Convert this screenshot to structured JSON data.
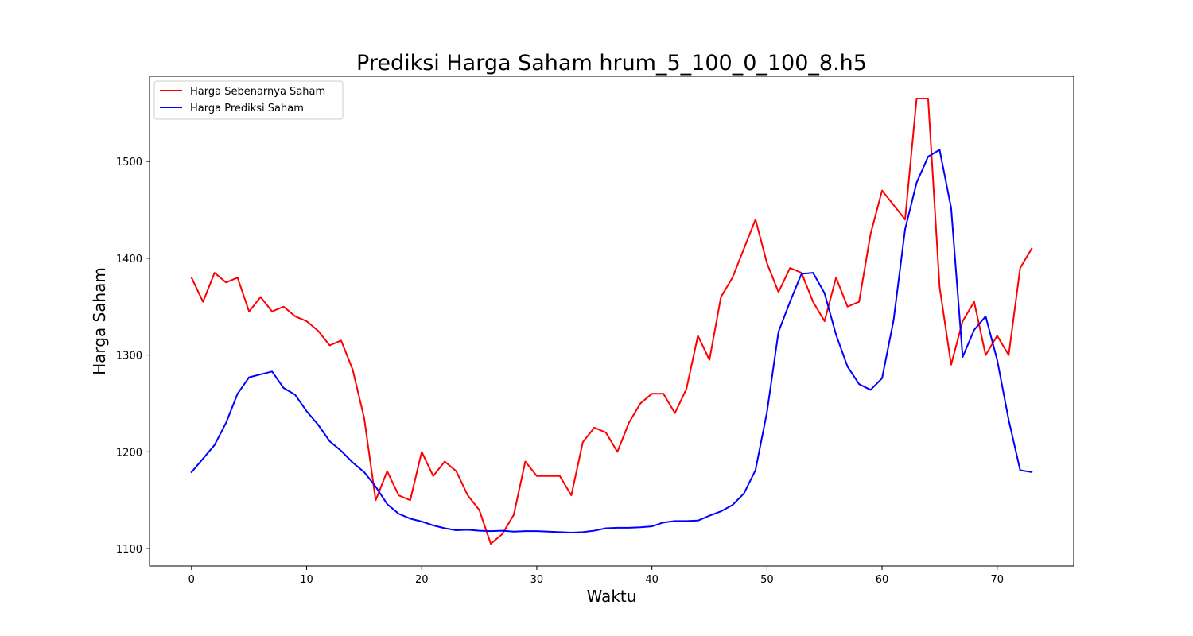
{
  "chart_data": {
    "type": "line",
    "title": "Prediksi Harga Saham hrum_5_100_0_100_8.h5",
    "xlabel": "Waktu",
    "ylabel": "Harga Saham",
    "xlim": [
      -3.65,
      76.65
    ],
    "ylim": [
      1082.0,
      1588.0
    ],
    "xticks": [
      0,
      10,
      20,
      30,
      40,
      50,
      60,
      70
    ],
    "yticks": [
      1100,
      1200,
      1300,
      1400,
      1500
    ],
    "grid": false,
    "legend_position": "top-left",
    "x": [
      0,
      1,
      2,
      3,
      4,
      5,
      6,
      7,
      8,
      9,
      10,
      11,
      12,
      13,
      14,
      15,
      16,
      17,
      18,
      19,
      20,
      21,
      22,
      23,
      24,
      25,
      26,
      27,
      28,
      29,
      30,
      31,
      32,
      33,
      34,
      35,
      36,
      37,
      38,
      39,
      40,
      41,
      42,
      43,
      44,
      45,
      46,
      47,
      48,
      49,
      50,
      51,
      52,
      53,
      54,
      55,
      56,
      57,
      58,
      59,
      60,
      61,
      62,
      63,
      64,
      65,
      66,
      67,
      68,
      69,
      70,
      71,
      72,
      73
    ],
    "series": [
      {
        "name": "Harga Sebenarnya Saham",
        "color": "#ff0000",
        "values": [
          1380,
          1355,
          1385,
          1375,
          1380,
          1345,
          1360,
          1345,
          1350,
          1340,
          1335,
          1325,
          1310,
          1315,
          1285,
          1235,
          1150,
          1180,
          1155,
          1150,
          1200,
          1175,
          1190,
          1180,
          1155,
          1140,
          1105,
          1115,
          1135,
          1190,
          1175,
          1175,
          1175,
          1155,
          1210,
          1225,
          1220,
          1200,
          1230,
          1250,
          1260,
          1260,
          1240,
          1265,
          1320,
          1295,
          1360,
          1380,
          1410,
          1440,
          1395,
          1365,
          1390,
          1385,
          1355,
          1335,
          1380,
          1350,
          1355,
          1425,
          1470,
          1455,
          1440,
          1565,
          1565,
          1370,
          1290,
          1335,
          1355,
          1300,
          1320,
          1300,
          1390,
          1410
        ]
      },
      {
        "name": "Harga Prediksi Saham",
        "color": "#0000ff",
        "values": [
          1179,
          1193,
          1207,
          1230,
          1260,
          1277,
          1280,
          1283,
          1266,
          1259,
          1242,
          1228,
          1211,
          1201,
          1189,
          1179,
          1164,
          1146,
          1136,
          1131,
          1128,
          1124,
          1121,
          1119,
          1119.5,
          1118.5,
          1118,
          1118.5,
          1117.5,
          1118,
          1118,
          1117.5,
          1117,
          1116.5,
          1117,
          1118.5,
          1121,
          1121.5,
          1121.5,
          1122,
          1123,
          1127,
          1128.5,
          1128.5,
          1129,
          1134,
          1138.5,
          1145,
          1157,
          1181,
          1241,
          1324,
          1355,
          1384,
          1385,
          1364,
          1321,
          1288,
          1270,
          1264,
          1276,
          1336,
          1430,
          1478,
          1505,
          1512,
          1452,
          1298,
          1326,
          1340,
          1295,
          1233,
          1181,
          1179
        ]
      }
    ]
  }
}
